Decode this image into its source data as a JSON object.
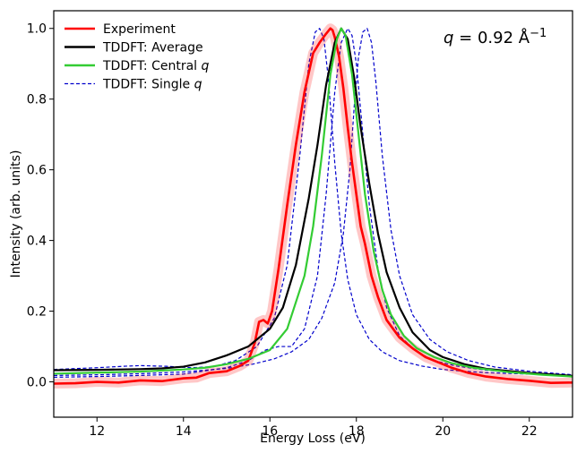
{
  "chart_data": {
    "type": "line",
    "xlabel": "Energy Loss (eV)",
    "ylabel": "Intensity (arb. units)",
    "xlim": [
      11,
      23
    ],
    "ylim": [
      -0.1,
      1.05
    ],
    "xticks": [
      12,
      14,
      16,
      18,
      20,
      22
    ],
    "yticks": [
      0.0,
      0.2,
      0.4,
      0.6,
      0.8,
      1.0
    ],
    "xtick_labels": [
      "12",
      "14",
      "16",
      "18",
      "20",
      "22"
    ],
    "ytick_labels": [
      "0.0",
      "0.2",
      "0.4",
      "0.6",
      "0.8",
      "1.0"
    ],
    "grid": false,
    "legend_position": "top-left",
    "annotation": {
      "prefix": "q",
      "text": " = 0.92 Å",
      "superscript": "−1"
    },
    "series": [
      {
        "name": "Experiment",
        "legend_text": "Experiment",
        "legend_italic": "",
        "color": "#ff0000",
        "style": "solid",
        "band": true,
        "x": [
          11.0,
          11.5,
          12.0,
          12.5,
          13.0,
          13.5,
          14.0,
          14.3,
          14.6,
          15.0,
          15.3,
          15.5,
          15.65,
          15.75,
          15.85,
          15.95,
          16.05,
          16.2,
          16.4,
          16.6,
          16.8,
          17.0,
          17.15,
          17.3,
          17.4,
          17.45,
          17.5,
          17.6,
          17.7,
          17.8,
          17.9,
          18.0,
          18.1,
          18.2,
          18.35,
          18.5,
          18.7,
          19.0,
          19.3,
          19.6,
          19.9,
          20.2,
          20.6,
          21.0,
          21.5,
          22.0,
          22.5,
          23.0
        ],
        "y": [
          -0.005,
          -0.004,
          0.0,
          -0.002,
          0.004,
          0.002,
          0.01,
          0.012,
          0.025,
          0.03,
          0.045,
          0.06,
          0.11,
          0.17,
          0.175,
          0.165,
          0.2,
          0.32,
          0.5,
          0.67,
          0.82,
          0.93,
          0.96,
          0.985,
          1.0,
          0.995,
          0.975,
          0.92,
          0.83,
          0.72,
          0.62,
          0.53,
          0.44,
          0.39,
          0.3,
          0.24,
          0.175,
          0.125,
          0.095,
          0.07,
          0.055,
          0.04,
          0.025,
          0.015,
          0.008,
          0.003,
          -0.003,
          -0.002
        ]
      },
      {
        "name": "TDDFT: Average",
        "legend_text": "TDDFT: Average",
        "legend_italic": "",
        "color": "#000000",
        "style": "solid",
        "x": [
          11.0,
          12.0,
          13.0,
          13.5,
          14.0,
          14.5,
          15.0,
          15.5,
          16.0,
          16.3,
          16.6,
          16.9,
          17.1,
          17.3,
          17.5,
          17.65,
          17.8,
          17.95,
          18.1,
          18.3,
          18.5,
          18.7,
          19.0,
          19.3,
          19.7,
          20.0,
          20.5,
          21.0,
          22.0,
          23.0
        ],
        "y": [
          0.033,
          0.034,
          0.036,
          0.038,
          0.043,
          0.055,
          0.075,
          0.1,
          0.15,
          0.21,
          0.33,
          0.52,
          0.67,
          0.84,
          0.96,
          1.0,
          0.97,
          0.86,
          0.72,
          0.56,
          0.42,
          0.31,
          0.21,
          0.14,
          0.09,
          0.07,
          0.05,
          0.037,
          0.025,
          0.017
        ]
      },
      {
        "name": "TDDFT: Central q",
        "legend_text": "TDDFT: Central ",
        "legend_italic": "q",
        "color": "#33cc33",
        "style": "solid",
        "x": [
          11.0,
          12.0,
          13.0,
          14.0,
          14.5,
          15.0,
          15.5,
          16.0,
          16.4,
          16.8,
          17.0,
          17.2,
          17.4,
          17.55,
          17.65,
          17.75,
          17.9,
          18.05,
          18.2,
          18.4,
          18.6,
          18.8,
          19.1,
          19.4,
          19.8,
          20.2,
          20.7,
          21.5,
          22.3,
          23.0
        ],
        "y": [
          0.023,
          0.026,
          0.029,
          0.035,
          0.04,
          0.05,
          0.065,
          0.09,
          0.15,
          0.3,
          0.44,
          0.64,
          0.87,
          0.97,
          1.0,
          0.98,
          0.87,
          0.7,
          0.53,
          0.37,
          0.26,
          0.19,
          0.13,
          0.095,
          0.07,
          0.053,
          0.04,
          0.028,
          0.02,
          0.015
        ]
      },
      {
        "name": "TDDFT: Single q",
        "legend_text": "TDDFT: Single ",
        "legend_italic": "q",
        "color": "#0000cc",
        "style": "dashed",
        "curves": [
          {
            "x": [
              11.0,
              12.0,
              12.6,
              13.0,
              13.6,
              14.2,
              14.7,
              15.2,
              15.7,
              16.1,
              16.4,
              16.7,
              16.9,
              17.05,
              17.15,
              17.25,
              17.35,
              17.5,
              17.65,
              17.8,
              18.0,
              18.3,
              18.6,
              19.0,
              19.5,
              20.0,
              20.5,
              21.0,
              22.0,
              23.0
            ],
            "y": [
              0.035,
              0.04,
              0.044,
              0.046,
              0.044,
              0.04,
              0.043,
              0.06,
              0.1,
              0.18,
              0.33,
              0.65,
              0.9,
              0.99,
              1.0,
              0.97,
              0.86,
              0.62,
              0.42,
              0.29,
              0.19,
              0.12,
              0.085,
              0.06,
              0.045,
              0.035,
              0.03,
              0.026,
              0.022,
              0.018
            ]
          },
          {
            "x": [
              11.0,
              12.0,
              13.0,
              14.0,
              15.0,
              15.5,
              15.9,
              16.2,
              16.5,
              16.8,
              17.1,
              17.3,
              17.5,
              17.65,
              17.8,
              17.9,
              18.0,
              18.15,
              18.3,
              18.5,
              18.7,
              19.0,
              19.4,
              19.8,
              20.3,
              21.0,
              22.0,
              23.0
            ],
            "y": [
              0.013,
              0.015,
              0.018,
              0.022,
              0.04,
              0.06,
              0.09,
              0.1,
              0.1,
              0.15,
              0.3,
              0.53,
              0.82,
              0.96,
              1.0,
              0.98,
              0.9,
              0.7,
              0.5,
              0.32,
              0.21,
              0.13,
              0.085,
              0.06,
              0.045,
              0.033,
              0.023,
              0.017
            ]
          },
          {
            "x": [
              11.0,
              12.0,
              13.0,
              14.0,
              15.0,
              15.6,
              16.1,
              16.5,
              16.9,
              17.2,
              17.5,
              17.7,
              17.85,
              17.95,
              18.05,
              18.15,
              18.25,
              18.35,
              18.45,
              18.6,
              18.8,
              19.0,
              19.3,
              19.7,
              20.1,
              20.6,
              21.2,
              22.0,
              23.0
            ],
            "y": [
              0.018,
              0.02,
              0.023,
              0.028,
              0.038,
              0.05,
              0.065,
              0.085,
              0.12,
              0.18,
              0.28,
              0.42,
              0.6,
              0.78,
              0.92,
              0.99,
              1.0,
              0.96,
              0.85,
              0.64,
              0.43,
              0.3,
              0.19,
              0.12,
              0.085,
              0.06,
              0.042,
              0.03,
              0.02
            ]
          }
        ]
      }
    ]
  }
}
